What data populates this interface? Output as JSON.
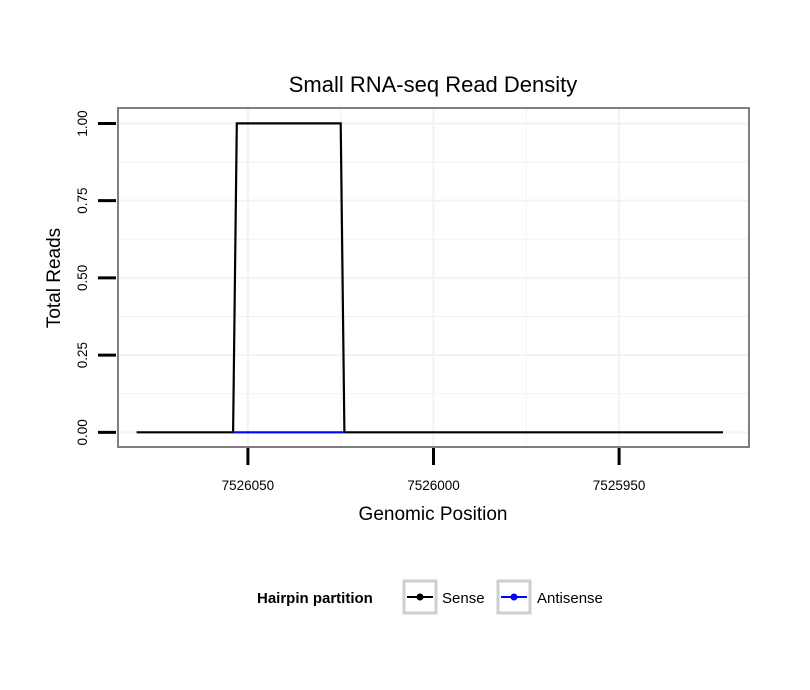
{
  "chart_data": {
    "type": "line",
    "title": "Small RNA-seq Read Density",
    "xlabel": "Genomic Position",
    "ylabel": "Total Reads",
    "x_reversed": true,
    "xlim": [
      7526085,
      7525915
    ],
    "ylim": [
      -0.0475,
      1.05
    ],
    "x_ticks": [
      7526050,
      7526000,
      7525950
    ],
    "x_tick_labels": [
      "7526050",
      "7526000",
      "7525950"
    ],
    "y_ticks": [
      0,
      0.25,
      0.5,
      0.75,
      1
    ],
    "y_tick_labels": [
      "0.00",
      "0.25",
      "0.50",
      "0.75",
      "1.00"
    ],
    "grid": true,
    "legend": {
      "title": "Hairpin partition",
      "position": "bottom",
      "entries": [
        "Sense",
        "Antisense"
      ]
    },
    "series": [
      {
        "name": "Sense",
        "color": "#000000",
        "x": [
          7526080,
          7526054,
          7526053,
          7526025,
          7526024,
          7525922
        ],
        "y": [
          0,
          0,
          1,
          1,
          0,
          0
        ]
      },
      {
        "name": "Antisense",
        "color": "#0000ff",
        "x": [
          7526054,
          7526024
        ],
        "y": [
          0,
          0
        ]
      }
    ]
  }
}
